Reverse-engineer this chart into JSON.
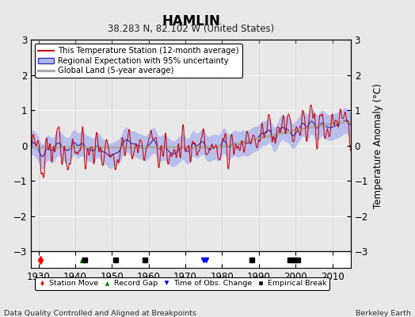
{
  "title": "HAMLIN",
  "subtitle": "38.283 N, 82.102 W (United States)",
  "ylabel": "Temperature Anomaly (°C)",
  "xlabel_left": "Data Quality Controlled and Aligned at Breakpoints",
  "xlabel_right": "Berkeley Earth",
  "ylim": [
    -3,
    3
  ],
  "xlim": [
    1928,
    2015
  ],
  "yticks": [
    -3,
    -2,
    -1,
    0,
    1,
    2,
    3
  ],
  "xticks": [
    1930,
    1940,
    1950,
    1960,
    1970,
    1980,
    1990,
    2000,
    2010
  ],
  "red_color": "#cc0000",
  "blue_fill_color": "#b0b8ee",
  "blue_line_color": "#3333bb",
  "gray_color": "#aaaaaa",
  "bg_color": "#e8e8e8",
  "white_color": "#ffffff",
  "legend_entries": [
    "This Temperature Station (12-month average)",
    "Regional Expectation with 95% uncertainty",
    "Global Land (5-year average)"
  ],
  "station_move_years": [
    1930.5
  ],
  "record_gap_years": [],
  "obs_change_years": [
    1975.0,
    1975.5
  ],
  "empirical_break_years": [
    1942.5,
    1951.0,
    1959.0,
    1988.0,
    1998.5,
    1999.5,
    2000.5
  ],
  "record_gap_marker_years": [
    1942.0
  ]
}
